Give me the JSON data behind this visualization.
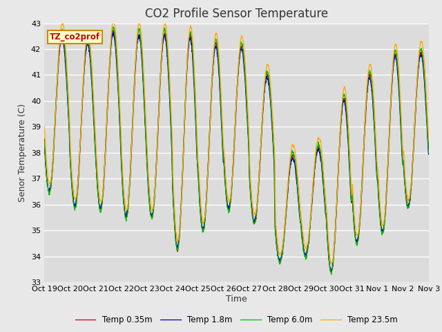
{
  "title": "CO2 Profile Sensor Temperature",
  "ylabel": "Senor Temperature (C)",
  "xlabel": "Time",
  "legend_label": "TZ_co2prof",
  "series_labels": [
    "Temp 0.35m",
    "Temp 1.8m",
    "Temp 6.0m",
    "Temp 23.5m"
  ],
  "series_colors": [
    "#cc0000",
    "#0000bb",
    "#00bb00",
    "#ffaa00"
  ],
  "ylim": [
    33.0,
    43.0
  ],
  "yticks": [
    33.0,
    34.0,
    35.0,
    36.0,
    37.0,
    38.0,
    39.0,
    40.0,
    41.0,
    42.0,
    43.0
  ],
  "xtick_labels": [
    "Oct 19",
    "Oct 20",
    "Oct 21",
    "Oct 22",
    "Oct 23",
    "Oct 24",
    "Oct 25",
    "Oct 26",
    "Oct 27",
    "Oct 28",
    "Oct 29",
    "Oct 30",
    "Oct 31",
    "Nov 1",
    "Nov 2",
    "Nov 3"
  ],
  "fig_bg_color": "#e8e8e8",
  "plot_bg_color": "#dcdcdc",
  "grid_color": "#ffffff",
  "title_fontsize": 12,
  "axis_fontsize": 9,
  "tick_fontsize": 8,
  "n_days": 15,
  "pts_per_day": 144,
  "day_peaks": [
    42.6,
    42.3,
    42.7,
    42.6,
    42.6,
    42.5,
    42.2,
    42.1,
    41.0,
    37.9,
    38.2,
    40.1,
    41.0,
    41.8,
    41.9
  ],
  "day_troughs": [
    36.5,
    35.9,
    35.8,
    35.5,
    35.5,
    34.3,
    35.0,
    35.8,
    35.3,
    33.8,
    34.0,
    33.4,
    34.5,
    34.9,
    35.9
  ],
  "orange_extra_peak": 0.4,
  "orange_extra_trough": 0.3,
  "green_extra_peak": 0.1,
  "line_width": 0.9
}
